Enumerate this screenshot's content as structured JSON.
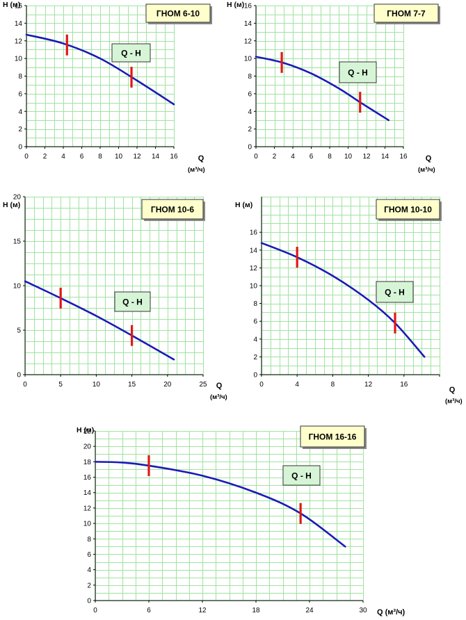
{
  "style": {
    "grid_color": "#9fe39f",
    "axis_color": "#000000",
    "curve_color": "#1a1ab8",
    "marker_color": "#e01818",
    "title_bg": "#ffffcc",
    "qh_bg": "#d6f5d6"
  },
  "chart_data": [
    {
      "type": "line",
      "title": "ГНОМ 6-10",
      "legend": "Q - H",
      "ylabel": "H (м)",
      "xlabel": "Q",
      "xunit": "(м³/ч)",
      "x_ticks": [
        0,
        2,
        4,
        6,
        8,
        10,
        12,
        14,
        16
      ],
      "x_tick_labels": [
        "0",
        "2",
        "4",
        "6",
        "8",
        "10",
        "12",
        "14",
        "16"
      ],
      "y_ticks": [
        0,
        2,
        4,
        6,
        8,
        10,
        12,
        14,
        16
      ],
      "y_tick_labels": [
        "0",
        "2",
        "4",
        "6",
        "8",
        "10",
        "12",
        "14",
        "16"
      ],
      "xlim": [
        0,
        16
      ],
      "ylim": [
        0,
        16
      ],
      "series": [
        {
          "name": "Q - H",
          "x": [
            0,
            4,
            8,
            12,
            16
          ],
          "y": [
            12.7,
            11.7,
            10,
            7.5,
            4.8
          ]
        }
      ],
      "working_range_markers": [
        4.4,
        11.4
      ]
    },
    {
      "type": "line",
      "title": "ГНОМ 7-7",
      "legend": "Q - H",
      "ylabel": "H (м)",
      "xlabel": "Q",
      "xunit": "(м³/ч)",
      "x_ticks": [
        0,
        2,
        4,
        6,
        8,
        10,
        12,
        14,
        16
      ],
      "x_tick_labels": [
        "0",
        "2",
        "4",
        "6",
        "8",
        "10",
        "12",
        "14",
        "16"
      ],
      "y_ticks": [
        0,
        2,
        4,
        6,
        8,
        10,
        12,
        14,
        16
      ],
      "y_tick_labels": [
        "0",
        "2",
        "4",
        "6",
        "8",
        "10",
        "12",
        "14",
        "16"
      ],
      "xlim": [
        0,
        16
      ],
      "ylim": [
        0,
        16
      ],
      "series": [
        {
          "name": "Q - H",
          "x": [
            0,
            3,
            6,
            9,
            11.5,
            14.4
          ],
          "y": [
            10.2,
            9.5,
            8.3,
            6.6,
            4.9,
            3
          ]
        }
      ],
      "working_range_markers": [
        2.8,
        11.3
      ]
    },
    {
      "type": "line",
      "title": "ГНОМ 10-6",
      "legend": "Q - H",
      "ylabel": "H (м)",
      "xlabel": "Q",
      "xunit": "(м³/ч)",
      "x_ticks": [
        0,
        5,
        10,
        15,
        20,
        25
      ],
      "x_tick_labels": [
        "0",
        "5",
        "10",
        "15",
        "20",
        "25"
      ],
      "y_ticks": [
        0,
        5,
        10,
        15,
        20
      ],
      "y_tick_labels": [
        "0",
        "5",
        "10",
        "15",
        "20"
      ],
      "xlim": [
        0,
        25
      ],
      "ylim": [
        0,
        20
      ],
      "grid_step_x": 1.25,
      "grid_step_y": 1.25,
      "series": [
        {
          "name": "Q - H",
          "x": [
            0,
            5,
            10,
            15,
            20.9
          ],
          "y": [
            10.5,
            8.6,
            6.6,
            4.4,
            1.7
          ]
        }
      ],
      "working_range_markers": [
        5,
        15
      ]
    },
    {
      "type": "line",
      "title": "ГНОМ 10-10",
      "legend": "Q - H",
      "ylabel": "H (м)",
      "xlabel": "Q",
      "xunit": "(м³/ч)",
      "x_ticks": [
        0,
        4,
        8,
        12,
        16,
        20
      ],
      "x_tick_labels": [
        "0",
        "4",
        "8",
        "12",
        "16",
        ""
      ],
      "y_ticks": [
        0,
        2,
        4,
        6,
        8,
        10,
        12,
        14,
        16
      ],
      "y_tick_labels": [
        "0",
        "2",
        "4",
        "6",
        "8",
        "10",
        "12",
        "14",
        "16"
      ],
      "xlim": [
        0,
        20
      ],
      "ylim": [
        0,
        20
      ],
      "grid_step_x": 1,
      "grid_step_y": 1,
      "series": [
        {
          "name": "Q - H",
          "x": [
            0,
            4,
            8,
            12,
            15,
            18.3
          ],
          "y": [
            14.8,
            13.2,
            11.1,
            8.4,
            5.8,
            2
          ]
        }
      ],
      "working_range_markers": [
        4,
        15
      ]
    },
    {
      "type": "line",
      "title": "ГНОМ 16-16",
      "legend": "Q - H",
      "ylabel": "H (м)",
      "xlabel": "Q (м³/ч)",
      "xunit": "",
      "x_ticks": [
        0,
        6,
        12,
        18,
        24,
        30
      ],
      "x_tick_labels": [
        "0",
        "6",
        "12",
        "18",
        "24",
        "30"
      ],
      "y_ticks": [
        0,
        2,
        4,
        6,
        8,
        10,
        12,
        14,
        16,
        18,
        20,
        22
      ],
      "y_tick_labels": [
        "0",
        "2",
        "4",
        "6",
        "8",
        "10",
        "12",
        "14",
        "16",
        "18",
        "20",
        "22"
      ],
      "xlim": [
        0,
        30
      ],
      "ylim": [
        0,
        22
      ],
      "grid_step_x": 1.5,
      "grid_step_y": 1,
      "series": [
        {
          "name": "Q - H",
          "x": [
            0,
            3,
            6,
            12,
            18,
            23,
            28
          ],
          "y": [
            18,
            17.9,
            17.5,
            16.2,
            14,
            11.3,
            7
          ]
        }
      ],
      "working_range_markers": [
        6,
        23
      ]
    }
  ]
}
